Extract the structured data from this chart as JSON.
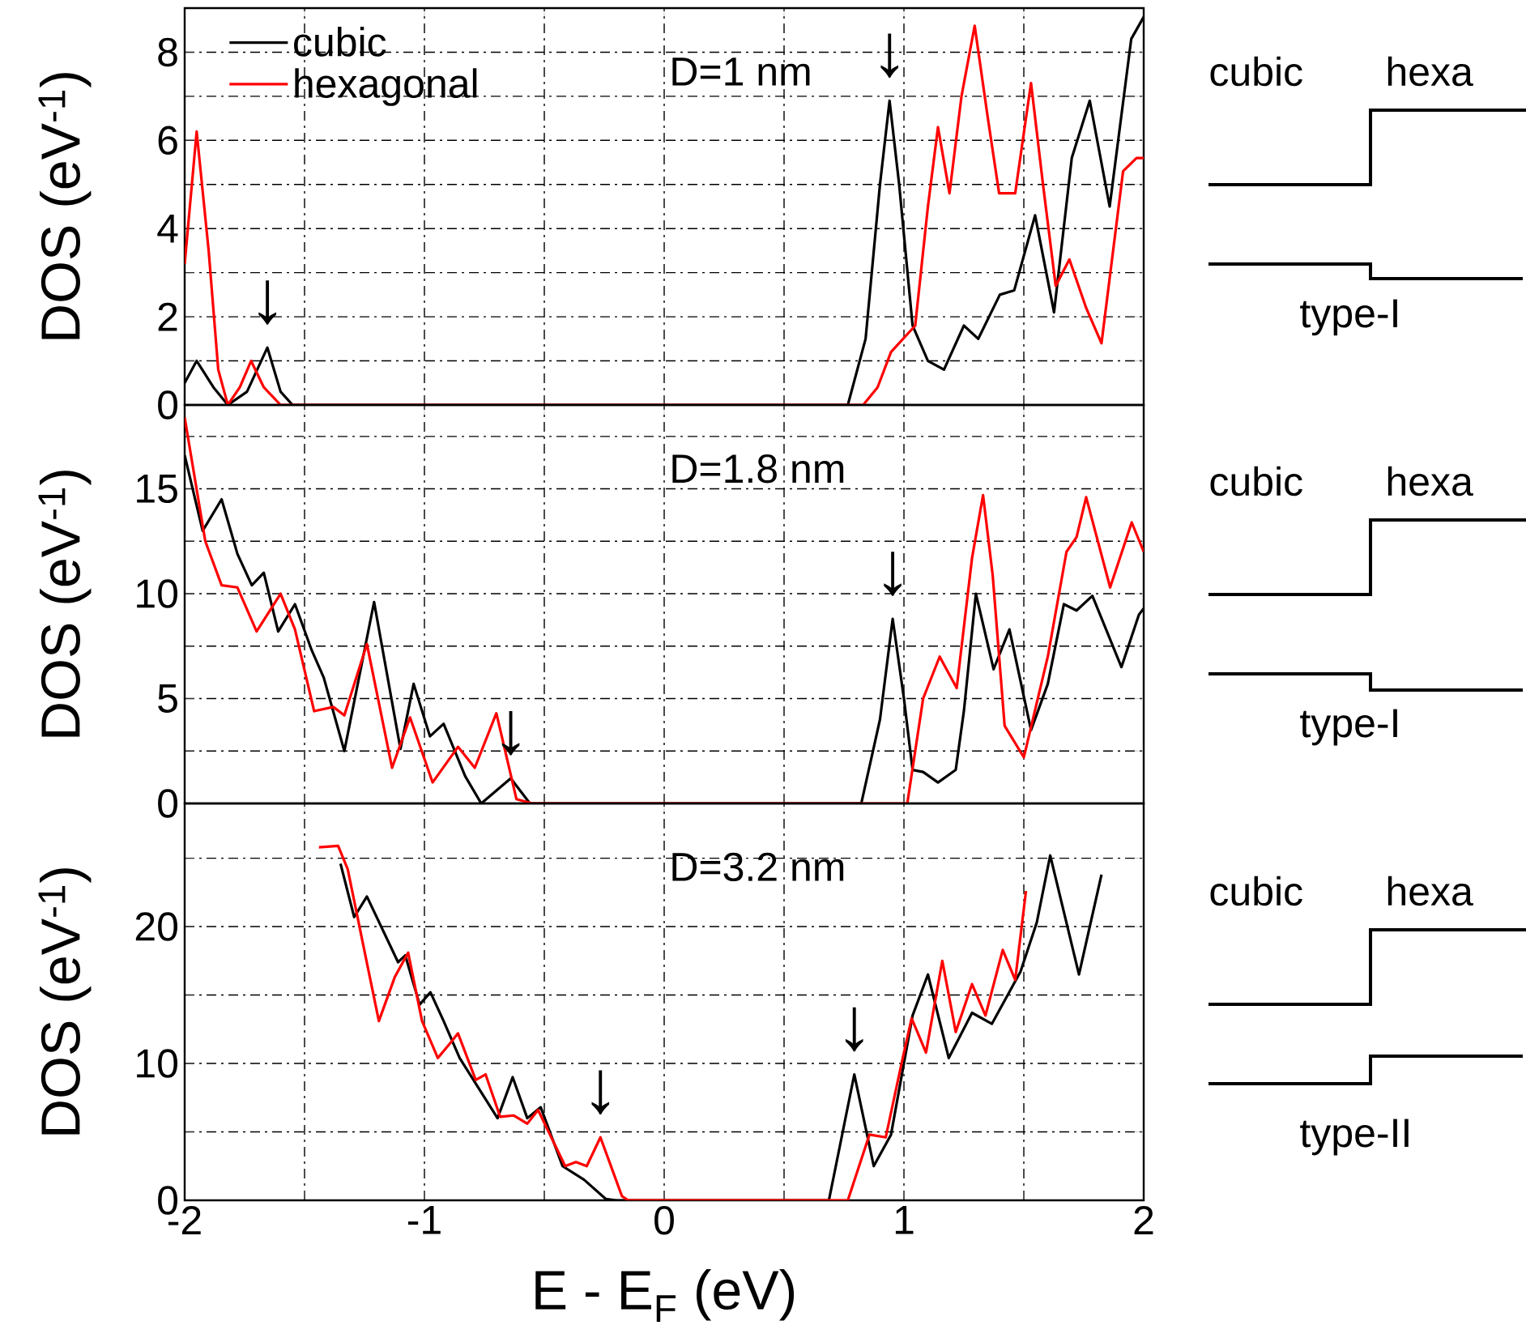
{
  "chart_data": [
    {
      "type": "line",
      "xlim": [
        -2,
        2
      ],
      "ylim": [
        0,
        9
      ],
      "xticks": [
        -2,
        {
          "value": -1.5,
          "label": null
        },
        -1,
        {
          "value": -0.5,
          "label": null
        },
        0,
        {
          "value": 0.5,
          "label": null
        },
        1,
        {
          "value": 1.5,
          "label": null
        },
        2
      ],
      "yticks": [
        0,
        {
          "value": 1,
          "label": null
        },
        2,
        {
          "value": 3,
          "label": null
        },
        4,
        {
          "value": 5,
          "label": null
        },
        6,
        {
          "value": 7,
          "label": null
        },
        8
      ],
      "grid": true,
      "legend": "top left",
      "tick_labels": "y",
      "ylabel": "DOS (eV$^{-1}$)",
      "annotations": [
        "D=1 nm",
        "cubic",
        "hexa",
        "type-I",
        {
          "text": "↓",
          "x": -1.655,
          "y": 1.3
        },
        {
          "text": "↓",
          "x": 0.94,
          "y": 6.9
        }
      ],
      "series": [
        {
          "name": "cubic",
          "color": "#000000",
          "x": [
            -2,
            -1.95,
            -1.88,
            -1.82,
            -1.74,
            -1.655,
            -1.6,
            -1.55,
            0.766,
            0.84,
            0.9,
            0.94,
            0.98,
            1.036,
            1.1,
            1.167,
            1.25,
            1.31,
            1.4,
            1.46,
            1.547,
            1.626,
            1.7,
            1.775,
            1.858,
            1.948,
            2
          ],
          "values": [
            0.5,
            1.0,
            0.4,
            0,
            0.3,
            1.3,
            0.3,
            0,
            0,
            1.5,
            5.0,
            6.9,
            5.0,
            1.8,
            1.0,
            0.8,
            1.8,
            1.5,
            2.5,
            2.6,
            4.3,
            2.1,
            5.6,
            6.9,
            4.5,
            8.3,
            8.8
          ]
        },
        {
          "name": "hexagonal",
          "color": "#ff0000",
          "x": [
            -2,
            -1.95,
            -1.9,
            -1.86,
            -1.82,
            -1.77,
            -1.723,
            -1.67,
            -1.6,
            0.83,
            0.89,
            0.946,
            1.047,
            1.1,
            1.142,
            1.19,
            1.24,
            1.295,
            1.35,
            1.397,
            1.464,
            1.53,
            1.58,
            1.633,
            1.69,
            1.76,
            1.824,
            1.914,
            1.97,
            2
          ],
          "values": [
            3.2,
            6.2,
            3.5,
            0.8,
            0,
            0.4,
            1.0,
            0.4,
            0,
            0,
            0.4,
            1.2,
            1.8,
            4.5,
            6.3,
            4.8,
            7.0,
            8.6,
            6.5,
            4.8,
            4.8,
            7.3,
            5.0,
            2.7,
            3.3,
            2.2,
            1.4,
            5.3,
            5.6,
            5.6
          ]
        }
      ]
    },
    {
      "type": "line",
      "xlim": [
        -2,
        2
      ],
      "ylim": [
        0,
        19
      ],
      "xticks": [
        -2,
        {
          "value": -1.5,
          "label": null
        },
        -1,
        {
          "value": -0.5,
          "label": null
        },
        0,
        {
          "value": 0.5,
          "label": null
        },
        1,
        {
          "value": 1.5,
          "label": null
        },
        2
      ],
      "yticks": [
        0,
        {
          "value": 2.5,
          "label": null
        },
        5,
        {
          "value": 7.5,
          "label": null
        },
        10,
        {
          "value": 12.5,
          "label": null
        },
        15,
        {
          "value": 17.5,
          "label": null
        }
      ],
      "grid": true,
      "tick_labels": "y",
      "ylabel": "DOS (eV$^{-1}$)",
      "annotations": [
        "D=1.8 nm",
        "cubic",
        "hexa",
        "type-I",
        {
          "text": "↓",
          "x": -0.64,
          "y": 1.2
        },
        {
          "text": "↓",
          "x": 0.953,
          "y": 8.8
        }
      ],
      "series": [
        {
          "color": "#000000",
          "x": [
            -2,
            -1.925,
            -1.846,
            -1.78,
            -1.72,
            -1.67,
            -1.61,
            -1.54,
            -1.47,
            -1.42,
            -1.334,
            -1.21,
            -1.1,
            -1.045,
            -0.977,
            -0.92,
            -0.83,
            -0.763,
            -0.64,
            -0.56,
            0.822,
            0.9,
            0.953,
            1.0,
            1.036,
            1.08,
            1.142,
            1.216,
            1.25,
            1.3,
            1.374,
            1.44,
            1.53,
            1.6,
            1.667,
            1.72,
            1.786,
            1.907,
            1.98,
            2
          ],
          "values": [
            16.6,
            13.0,
            14.5,
            11.9,
            10.4,
            11.0,
            8.2,
            9.5,
            7.3,
            6.0,
            2.5,
            9.6,
            2.6,
            5.7,
            3.2,
            3.8,
            1.3,
            0.0,
            1.2,
            0,
            0,
            4.0,
            8.8,
            5.0,
            1.6,
            1.5,
            1.0,
            1.6,
            4.4,
            10.0,
            6.4,
            8.3,
            3.5,
            5.7,
            9.5,
            9.2,
            9.9,
            6.5,
            9.0,
            9.3
          ]
        },
        {
          "color": "#ff0000",
          "x": [
            -2,
            -1.914,
            -1.846,
            -1.78,
            -1.7,
            -1.6,
            -1.54,
            -1.46,
            -1.38,
            -1.334,
            -1.24,
            -1.135,
            -1.06,
            -0.966,
            -0.86,
            -0.79,
            -0.7,
            -0.616,
            -0.55,
            1.014,
            1.08,
            1.149,
            1.22,
            1.284,
            1.33,
            1.37,
            1.42,
            1.5,
            1.6,
            1.678,
            1.72,
            1.76,
            1.86,
            1.95,
            2
          ],
          "values": [
            18.4,
            12.5,
            10.4,
            10.3,
            8.2,
            10.0,
            8.3,
            4.4,
            4.6,
            4.2,
            7.6,
            1.7,
            4.1,
            1.0,
            2.7,
            1.7,
            4.3,
            0.2,
            0,
            0,
            5.0,
            7.0,
            5.5,
            11.7,
            14.7,
            10.9,
            3.7,
            2.2,
            7.0,
            12.0,
            12.7,
            14.6,
            10.3,
            13.4,
            12.0
          ]
        }
      ]
    },
    {
      "type": "line",
      "xlim": [
        -2,
        2
      ],
      "ylim": [
        0,
        29
      ],
      "xticks": [
        -2,
        {
          "value": -1.5,
          "label": null
        },
        -1,
        {
          "value": -0.5,
          "label": null
        },
        0,
        {
          "value": 0.5,
          "label": null
        },
        1,
        {
          "value": 1.5,
          "label": null
        },
        2
      ],
      "yticks": [
        0,
        {
          "value": 5,
          "label": null
        },
        10,
        {
          "value": 15,
          "label": null
        },
        20,
        {
          "value": 25,
          "label": null
        }
      ],
      "grid": true,
      "xlabel": "E - E$_{F}$ (eV)",
      "ylabel": "DOS (eV$^{-1}$)",
      "annotations": [
        "D=3.2 nm",
        "cubic",
        "hexa",
        "type-II",
        {
          "text": "↓",
          "x": -0.266,
          "y": 4.6
        },
        {
          "text": "↓",
          "x": 0.793,
          "y": 9.2
        }
      ],
      "series": [
        {
          "color": "#000000",
          "x": [
            -1.35,
            -1.293,
            -1.24,
            -1.11,
            -1.08,
            -1.02,
            -0.975,
            -0.92,
            -0.853,
            -0.695,
            -0.632,
            -0.571,
            -0.515,
            -0.424,
            -0.334,
            -0.244,
            -0.2,
            0.687,
            0.793,
            0.874,
            0.946,
            1.036,
            1.1,
            1.187,
            1.284,
            1.367,
            1.486,
            1.554,
            1.61,
            1.73,
            1.824
          ],
          "values": [
            24.6,
            20.7,
            22.2,
            17.4,
            17.9,
            14.3,
            15.2,
            13.1,
            10.4,
            6.0,
            9.0,
            6.0,
            6.8,
            2.5,
            1.5,
            0.1,
            0,
            0,
            9.2,
            2.5,
            4.8,
            13.5,
            16.5,
            10.4,
            13.7,
            12.9,
            16.7,
            20.3,
            25.2,
            16.5,
            23.8
          ]
        },
        {
          "color": "#ff0000",
          "x": [
            -1.44,
            -1.36,
            -1.32,
            -1.237,
            -1.19,
            -1.124,
            -1.068,
            -1.01,
            -0.944,
            -0.887,
            -0.86,
            -0.786,
            -0.745,
            -0.684,
            -0.628,
            -0.571,
            -0.526,
            -0.413,
            -0.368,
            -0.323,
            -0.266,
            -0.176,
            -0.15,
            0.766,
            0.856,
            0.924,
            0.99,
            1.032,
            1.092,
            1.16,
            1.216,
            1.284,
            1.34,
            1.412,
            1.464,
            1.509
          ],
          "values": [
            25.8,
            25.9,
            24.2,
            17.1,
            13.1,
            16.3,
            18.1,
            13.1,
            10.4,
            11.6,
            12.2,
            8.8,
            9.2,
            6.1,
            6.2,
            5.6,
            6.6,
            2.5,
            2.8,
            2.5,
            4.6,
            0.3,
            0,
            0,
            4.8,
            4.6,
            10.0,
            13.3,
            10.8,
            17.5,
            12.3,
            15.8,
            13.5,
            18.3,
            16.1,
            22.6
          ]
        }
      ]
    }
  ]
}
